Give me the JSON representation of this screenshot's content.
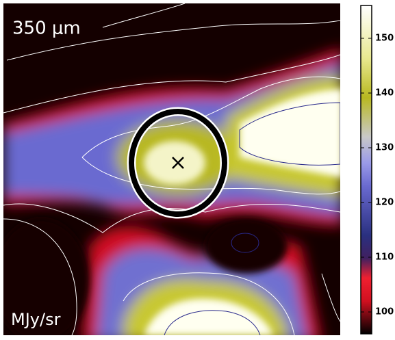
{
  "image": {
    "band_label": "350 μm",
    "unit_label": "MJy/sr"
  },
  "colorbar": {
    "clim": [
      96,
      156
    ],
    "ticks": [
      100,
      110,
      120,
      130,
      140,
      150
    ]
  }
}
